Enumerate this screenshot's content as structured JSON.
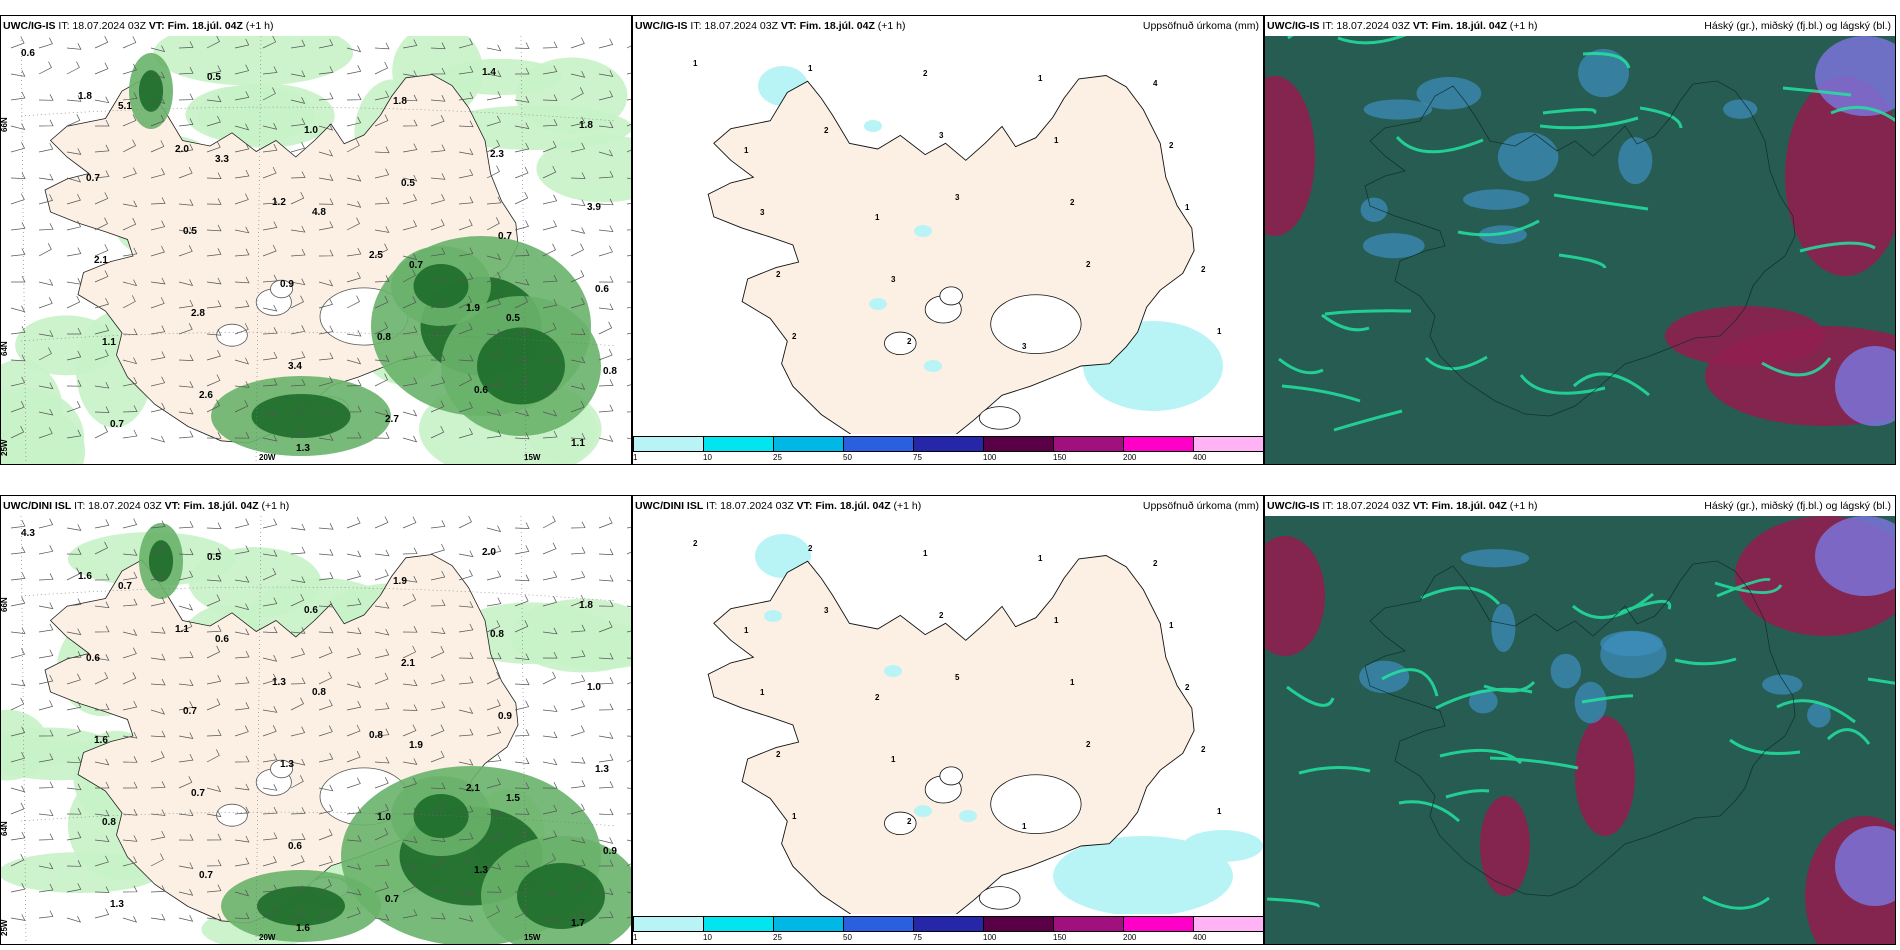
{
  "panels": [
    {
      "model": "UWC/IG-IS",
      "it": "IT: 18.07.2024 03Z",
      "vt_label": "VT:",
      "vt": "Fim. 18.júl. 04Z",
      "lead": "(+1 h)",
      "right_title": ""
    },
    {
      "model": "UWC/IG-IS",
      "it": "IT: 18.07.2024 03Z",
      "vt_label": "VT:",
      "vt": "Fim. 18.júl. 04Z",
      "lead": "(+1 h)",
      "right_title": "Uppsöfnuð úrkoma (mm)"
    },
    {
      "model": "UWC/IG-IS",
      "it": "IT: 18.07.2024 03Z",
      "vt_label": "VT:",
      "vt": "Fim. 18.júl. 04Z",
      "lead": "(+1 h)",
      "right_title": "Háský (gr.), miðský (fj.bl.) og lágský (bl.)"
    },
    {
      "model": "UWC/DINI ISL",
      "it": "IT: 18.07.2024 03Z",
      "vt_label": "VT:",
      "vt": "Fim. 18.júl. 04Z",
      "lead": "(+1 h)",
      "right_title": ""
    },
    {
      "model": "UWC/DINI ISL",
      "it": "IT: 18.07.2024 03Z",
      "vt_label": "VT:",
      "vt": "Fim. 18.júl. 04Z",
      "lead": "(+1 h)",
      "right_title": "Uppsöfnuð úrkoma (mm)"
    },
    {
      "model": "UWC/IG-IS",
      "it": "IT: 18.07.2024 03Z",
      "vt_label": "VT:",
      "vt": "Fim. 18.júl. 04Z",
      "lead": "(+1 h)",
      "right_title": "Háský (gr.), miðský (fj.bl.) og lágský (bl.)"
    }
  ],
  "grid_labels": {
    "lat_66": "66N",
    "lat_64": "64N",
    "lon_25": "25W",
    "lon_20": "20W",
    "lon_15": "15W"
  },
  "colorbar": {
    "ticks": [
      "1",
      "10",
      "25",
      "50",
      "75",
      "100",
      "150",
      "200",
      "400"
    ],
    "colors": [
      "#b8f4f6",
      "#00e5ee",
      "#00b8e6",
      "#2a5fe0",
      "#2626a8",
      "#5a0046",
      "#a0107e",
      "#ff00c8",
      "#ffb2f4"
    ]
  },
  "colors": {
    "land": "#fbf0e3",
    "wet_light": "#c8f2c6",
    "wet_mid": "#69b36a",
    "wet_dark": "#1e6b2a",
    "sea_cloud": "#265c52",
    "high_cloud": "#8f1f4f",
    "mid_cloud": "#3f8fc0",
    "low_cloud": "#7a73d8",
    "edge": "#22e39f"
  },
  "precip_labels": {
    "top": [
      "0.6",
      "5.1",
      "3.3",
      "4.8",
      "0.7",
      "0.5",
      "0.8",
      "0.7",
      "0.5",
      "1.0",
      "0.5",
      "0.7",
      "0.6",
      "1.1",
      "2.6",
      "1.3",
      "1.8",
      "2.3",
      "3.9",
      "2.1",
      "2.8",
      "3.4",
      "2.7",
      "1.4",
      "1.8",
      "0.7",
      "0.5",
      "0.9",
      "0.8",
      "0.6",
      "1.1",
      "1.8",
      "2.0",
      "1.2",
      "2.5",
      "1.9"
    ],
    "bottom": [
      "4.3",
      "0.7",
      "0.6",
      "0.8",
      "1.9",
      "1.5",
      "0.9",
      "1.3",
      "0.5",
      "0.6",
      "2.1",
      "0.9",
      "1.3",
      "0.8",
      "0.7",
      "1.6",
      "1.9",
      "0.8",
      "1.0",
      "1.6",
      "0.7",
      "0.6",
      "0.7",
      "2.0",
      "1.8",
      "0.6",
      "0.7",
      "1.3",
      "1.0",
      "1.3",
      "1.7",
      "1.6",
      "1.1",
      "1.3",
      "0.8",
      "2.1"
    ]
  },
  "accum_labels": {
    "top": [
      "1",
      "2",
      "3",
      "2",
      "1",
      "1",
      "3",
      "2",
      "2",
      "2",
      "2",
      "1",
      "1",
      "2",
      "2",
      "1",
      "2",
      "3",
      "3",
      "3",
      "4",
      "1",
      "1"
    ],
    "bottom": [
      "2",
      "3",
      "5",
      "2",
      "1",
      "2",
      "2",
      "1",
      "2",
      "1",
      "1",
      "1",
      "2",
      "2",
      "2",
      "1",
      "1",
      "1",
      "1",
      "1",
      "2",
      "1",
      "2"
    ]
  }
}
